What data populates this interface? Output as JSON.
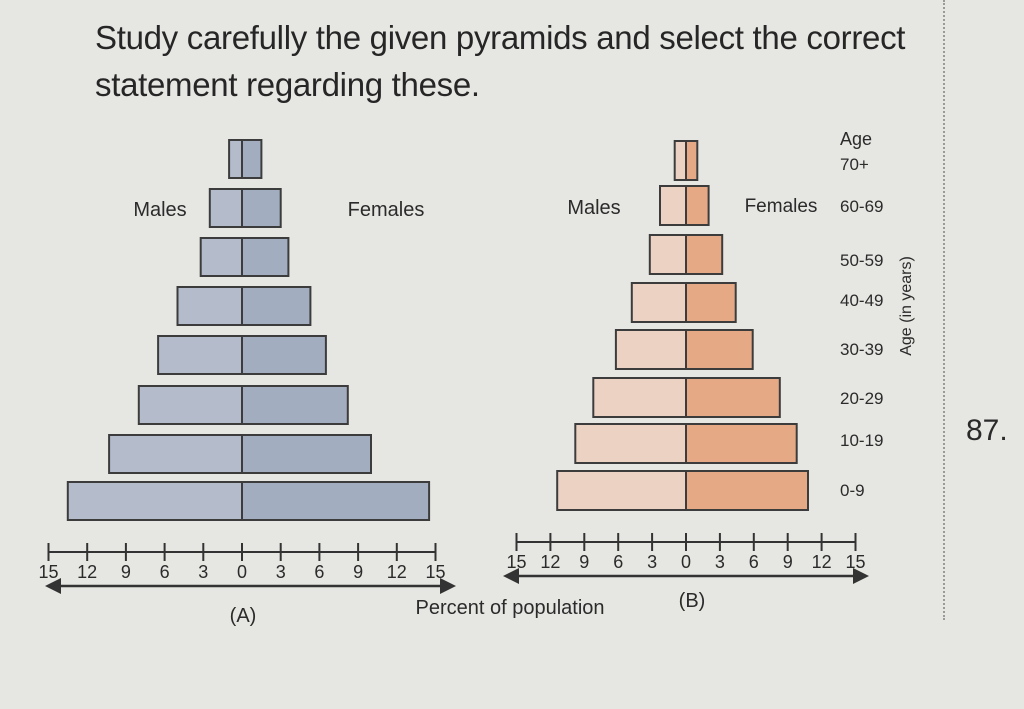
{
  "question": {
    "text": "Study carefully the given pyramids and select the correct statement regarding these.",
    "number": "87."
  },
  "shared": {
    "xlabel": "Percent of population",
    "age_title": "Age",
    "age_axis_label": "Age (in years)",
    "male_label": "Males",
    "female_label": "Females"
  },
  "colors": {
    "a_male": "#b4bccb",
    "a_female": "#a3adc0",
    "b_male": "#ecd2c3",
    "b_female": "#e5aa85",
    "outline": "#3c3c3c"
  },
  "chart_data": [
    {
      "type": "bar",
      "orientation": "horizontal",
      "title": "(A)",
      "categories": [
        "70+",
        "60-69",
        "50-59",
        "40-49",
        "30-39",
        "20-29",
        "10-19",
        "0-9"
      ],
      "series": [
        {
          "name": "Males",
          "values": [
            1.0,
            2.5,
            3.2,
            5.0,
            6.5,
            8.0,
            10.3,
            13.5
          ]
        },
        {
          "name": "Females",
          "values": [
            1.5,
            3.0,
            3.6,
            5.3,
            6.5,
            8.2,
            10.0,
            14.5
          ]
        }
      ],
      "xticks": [
        "15",
        "12",
        "9",
        "6",
        "3",
        "0",
        "3",
        "6",
        "9",
        "12",
        "15"
      ],
      "xlim": [
        -15,
        15
      ]
    },
    {
      "type": "bar",
      "orientation": "horizontal",
      "title": "(B)",
      "categories": [
        "70+",
        "60-69",
        "50-59",
        "40-49",
        "30-39",
        "20-29",
        "10-19",
        "0-9"
      ],
      "series": [
        {
          "name": "Males",
          "values": [
            1.0,
            2.3,
            3.2,
            4.8,
            6.2,
            8.2,
            9.8,
            11.4
          ]
        },
        {
          "name": "Females",
          "values": [
            1.0,
            2.0,
            3.2,
            4.4,
            5.9,
            8.3,
            9.8,
            10.8
          ]
        }
      ],
      "xticks": [
        "15",
        "12",
        "9",
        "6",
        "3",
        "0",
        "3",
        "6",
        "9",
        "12",
        "15"
      ],
      "xlim": [
        -15,
        15
      ]
    }
  ]
}
